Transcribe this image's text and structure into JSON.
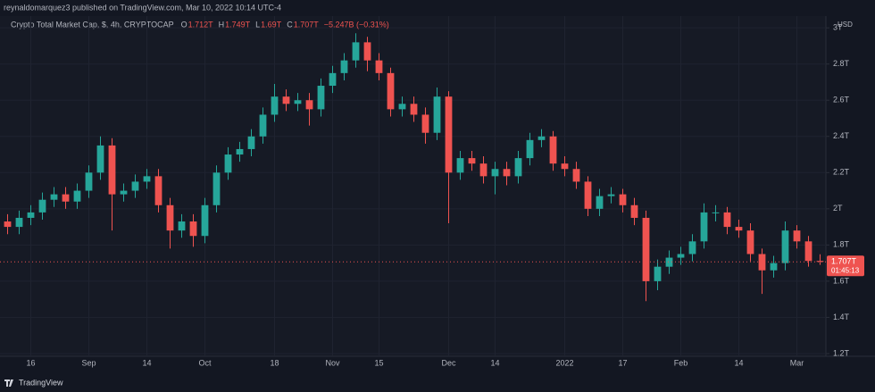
{
  "header": {
    "published": "reynaldomarquez3 published on TradingView.com, Mar 10, 2022 10:14 UTC-4",
    "brand": "TradingView"
  },
  "chart_data": {
    "type": "candlestick",
    "title": "Crypto Total Market Cap, $, 4h, CRYPTOCAP",
    "legend_values": [
      {
        "label": "O",
        "value": "1.712T"
      },
      {
        "label": "H",
        "value": "1.749T"
      },
      {
        "label": "L",
        "value": "1.69T"
      },
      {
        "label": "C",
        "value": "1.707T"
      }
    ],
    "change": "−5.247B (−0.31%)",
    "currency": "USD",
    "price_label": "1.707T",
    "countdown": "01:45:13",
    "up_color": "#26a69a",
    "down_color": "#ef5350",
    "grid": true,
    "categories": [
      null,
      null,
      "16",
      null,
      null,
      null,
      null,
      "Sep",
      null,
      null,
      null,
      null,
      "14",
      null,
      null,
      null,
      null,
      "Oct",
      null,
      null,
      null,
      null,
      null,
      "18",
      null,
      null,
      null,
      null,
      "Nov",
      null,
      null,
      null,
      "15",
      null,
      null,
      null,
      null,
      null,
      "Dec",
      null,
      null,
      null,
      "14",
      null,
      null,
      null,
      null,
      null,
      "2022",
      null,
      null,
      null,
      null,
      "17",
      null,
      null,
      null,
      null,
      "Feb",
      null,
      null,
      null,
      null,
      "14",
      null,
      null,
      null,
      null,
      "Mar",
      null,
      null
    ],
    "open": [
      1.93,
      1.9,
      1.95,
      1.98,
      2.05,
      2.08,
      2.04,
      2.1,
      2.2,
      2.35,
      2.08,
      2.1,
      2.15,
      2.18,
      2.02,
      1.88,
      1.93,
      1.85,
      2.02,
      2.2,
      2.3,
      2.33,
      2.4,
      2.52,
      2.62,
      2.58,
      2.6,
      2.55,
      2.68,
      2.75,
      2.82,
      2.92,
      2.82,
      2.75,
      2.55,
      2.58,
      2.52,
      2.42,
      2.62,
      2.2,
      2.28,
      2.25,
      2.18,
      2.22,
      2.18,
      2.28,
      2.38,
      2.4,
      2.25,
      2.22,
      2.15,
      2.0,
      2.07,
      2.08,
      2.02,
      1.95,
      1.6,
      1.68,
      1.73,
      1.75,
      1.82,
      1.98,
      1.98,
      1.9,
      1.88,
      1.75,
      1.66,
      1.7,
      1.88,
      1.82,
      1.712
    ],
    "high": [
      1.97,
      1.99,
      2.02,
      2.09,
      2.12,
      2.12,
      2.14,
      2.24,
      2.4,
      2.39,
      2.14,
      2.19,
      2.22,
      2.22,
      2.06,
      1.97,
      1.97,
      2.06,
      2.24,
      2.34,
      2.37,
      2.44,
      2.56,
      2.69,
      2.66,
      2.64,
      2.64,
      2.72,
      2.79,
      2.86,
      2.97,
      2.95,
      2.86,
      2.78,
      2.62,
      2.62,
      2.56,
      2.67,
      2.65,
      2.32,
      2.32,
      2.29,
      2.26,
      2.26,
      2.32,
      2.42,
      2.44,
      2.43,
      2.29,
      2.26,
      2.18,
      2.11,
      2.12,
      2.11,
      2.06,
      1.99,
      1.72,
      1.77,
      1.79,
      1.86,
      2.03,
      2.02,
      2.01,
      1.94,
      1.92,
      1.78,
      1.74,
      1.93,
      1.91,
      1.85,
      1.749
    ],
    "low": [
      1.86,
      1.86,
      1.91,
      1.94,
      2.01,
      2.0,
      2.0,
      2.06,
      2.16,
      1.88,
      2.04,
      2.06,
      2.11,
      1.98,
      1.78,
      1.84,
      1.79,
      1.81,
      1.98,
      2.16,
      2.26,
      2.29,
      2.36,
      2.48,
      2.54,
      2.54,
      2.46,
      2.51,
      2.64,
      2.71,
      2.78,
      2.76,
      2.71,
      2.51,
      2.51,
      2.48,
      2.36,
      2.38,
      1.92,
      2.16,
      2.21,
      2.14,
      2.08,
      2.13,
      2.14,
      2.24,
      2.34,
      2.21,
      2.18,
      2.11,
      1.96,
      1.96,
      2.03,
      1.98,
      1.91,
      1.49,
      1.55,
      1.64,
      1.69,
      1.71,
      1.78,
      1.93,
      1.86,
      1.84,
      1.71,
      1.53,
      1.62,
      1.66,
      1.78,
      1.68,
      1.69
    ],
    "close": [
      1.9,
      1.95,
      1.98,
      2.05,
      2.08,
      2.04,
      2.1,
      2.2,
      2.35,
      2.08,
      2.1,
      2.15,
      2.18,
      2.02,
      1.88,
      1.93,
      1.85,
      2.02,
      2.2,
      2.3,
      2.33,
      2.4,
      2.52,
      2.62,
      2.58,
      2.6,
      2.55,
      2.68,
      2.75,
      2.82,
      2.92,
      2.82,
      2.75,
      2.55,
      2.58,
      2.52,
      2.42,
      2.62,
      2.2,
      2.28,
      2.25,
      2.18,
      2.22,
      2.18,
      2.28,
      2.38,
      2.4,
      2.25,
      2.22,
      2.15,
      2.0,
      2.07,
      2.08,
      2.02,
      1.95,
      1.6,
      1.68,
      1.73,
      1.75,
      1.82,
      1.98,
      1.98,
      1.9,
      1.88,
      1.75,
      1.66,
      1.7,
      1.88,
      1.82,
      1.712,
      1.707
    ],
    "ylim": [
      1.185,
      3.065
    ],
    "yticks": [
      {
        "value": 1.2,
        "label": "1.2T"
      },
      {
        "value": 1.4,
        "label": "1.4T"
      },
      {
        "value": 1.6,
        "label": "1.6T"
      },
      {
        "value": 1.8,
        "label": "1.8T"
      },
      {
        "value": 2,
        "label": "2T"
      },
      {
        "value": 2.2,
        "label": "2.2T"
      },
      {
        "value": 2.4,
        "label": "2.4T"
      },
      {
        "value": 2.6,
        "label": "2.6T"
      },
      {
        "value": 2.8,
        "label": "2.8T"
      },
      {
        "value": 3,
        "label": "3T"
      }
    ]
  }
}
